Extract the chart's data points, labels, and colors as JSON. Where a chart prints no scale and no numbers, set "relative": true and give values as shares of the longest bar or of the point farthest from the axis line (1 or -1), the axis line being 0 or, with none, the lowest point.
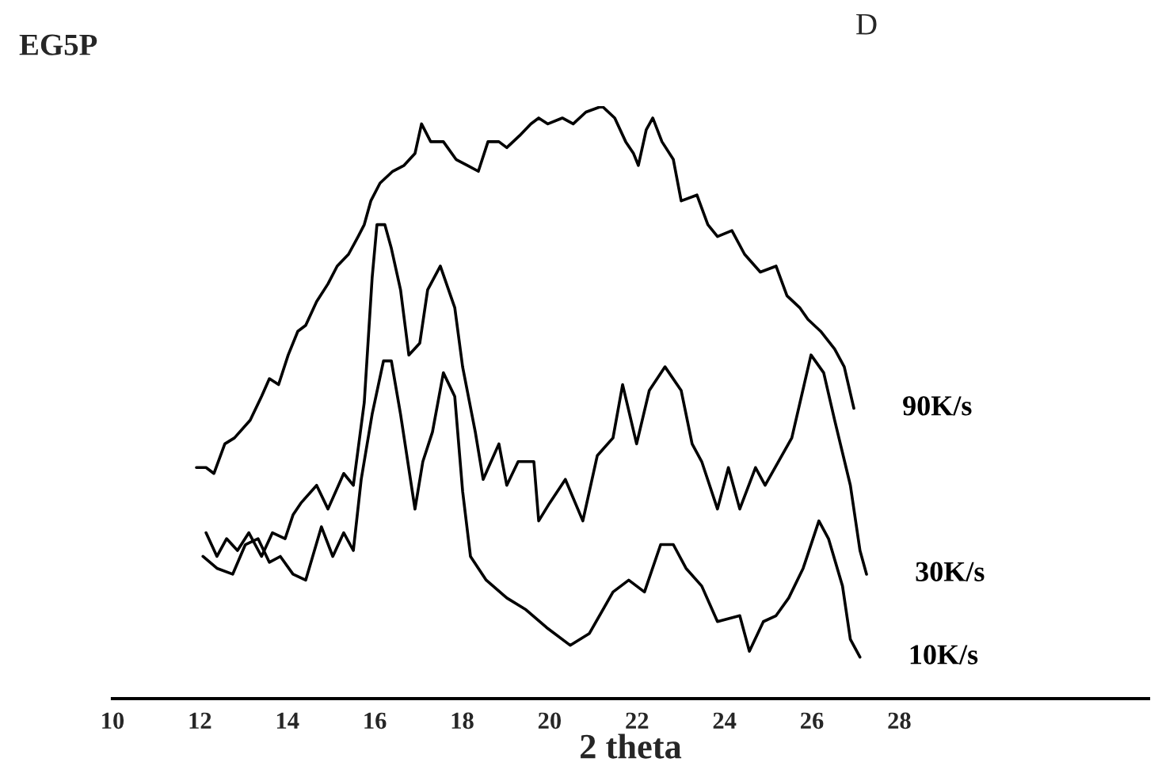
{
  "chart_data": {
    "type": "line",
    "title": "EG5P",
    "xlabel": "2 theta",
    "annotations": [
      "D"
    ],
    "relative": true,
    "legend": false,
    "grid": false,
    "line_style": "solid",
    "marker": "none",
    "xlim": [
      10,
      33.7
    ],
    "xticks": [
      10,
      12,
      14,
      16,
      18,
      20,
      22,
      24,
      26,
      28
    ],
    "series": [
      {
        "name": "90K/s",
        "color": "#000000",
        "x": [
          11.92,
          12.14,
          12.32,
          12.57,
          12.79,
          13.15,
          13.41,
          13.59,
          13.8,
          14.02,
          14.24,
          14.42,
          14.67,
          14.93,
          15.14,
          15.4,
          15.62,
          15.76,
          15.91,
          16.12,
          16.41,
          16.67,
          16.92,
          17.07,
          17.28,
          17.57,
          17.86,
          18.12,
          18.37,
          18.59,
          18.84,
          19.02,
          19.31,
          19.57,
          19.75,
          19.96,
          20.29,
          20.54,
          20.83,
          21.2,
          21.49,
          21.74,
          21.92,
          22.03,
          22.21,
          22.36,
          22.57,
          22.83,
          23.01,
          23.37,
          23.62,
          23.84,
          24.17,
          24.46,
          24.82,
          25.18,
          25.43,
          25.72,
          25.91,
          26.2,
          26.52,
          26.74,
          26.96
        ],
        "values": [
          0.39,
          0.39,
          0.38,
          0.43,
          0.44,
          0.47,
          0.51,
          0.54,
          0.53,
          0.58,
          0.62,
          0.63,
          0.67,
          0.7,
          0.73,
          0.75,
          0.78,
          0.8,
          0.84,
          0.87,
          0.89,
          0.9,
          0.92,
          0.97,
          0.94,
          0.94,
          0.91,
          0.9,
          0.89,
          0.94,
          0.94,
          0.93,
          0.95,
          0.97,
          0.98,
          0.97,
          0.98,
          0.97,
          0.99,
          1.0,
          0.98,
          0.94,
          0.92,
          0.9,
          0.96,
          0.98,
          0.94,
          0.91,
          0.84,
          0.85,
          0.8,
          0.78,
          0.79,
          0.75,
          0.72,
          0.73,
          0.68,
          0.66,
          0.64,
          0.62,
          0.59,
          0.56,
          0.49
        ]
      },
      {
        "name": "30K/s",
        "color": "#000000",
        "x": [
          12.14,
          12.39,
          12.61,
          12.86,
          13.12,
          13.41,
          13.66,
          13.95,
          14.13,
          14.31,
          14.67,
          14.93,
          15.29,
          15.51,
          15.76,
          15.94,
          16.05,
          16.23,
          16.38,
          16.59,
          16.78,
          17.03,
          17.21,
          17.5,
          17.83,
          18.01,
          18.3,
          18.48,
          18.66,
          18.84,
          19.02,
          19.28,
          19.64,
          19.75,
          20.0,
          20.36,
          20.76,
          21.09,
          21.45,
          21.67,
          21.99,
          22.28,
          22.64,
          23.01,
          23.26,
          23.48,
          23.84,
          24.09,
          24.35,
          24.71,
          24.93,
          25.54,
          25.98,
          26.27,
          26.52,
          26.88,
          27.1,
          27.25
        ],
        "values": [
          0.28,
          0.24,
          0.27,
          0.25,
          0.28,
          0.24,
          0.28,
          0.27,
          0.31,
          0.33,
          0.36,
          0.32,
          0.38,
          0.36,
          0.5,
          0.71,
          0.8,
          0.8,
          0.76,
          0.69,
          0.58,
          0.6,
          0.69,
          0.73,
          0.66,
          0.56,
          0.45,
          0.37,
          0.4,
          0.43,
          0.36,
          0.4,
          0.4,
          0.3,
          0.33,
          0.37,
          0.3,
          0.41,
          0.44,
          0.53,
          0.43,
          0.52,
          0.56,
          0.52,
          0.43,
          0.4,
          0.32,
          0.39,
          0.32,
          0.39,
          0.36,
          0.44,
          0.58,
          0.55,
          0.47,
          0.36,
          0.25,
          0.21
        ]
      },
      {
        "name": "10K/s",
        "color": "#000000",
        "x": [
          12.07,
          12.39,
          12.75,
          13.04,
          13.33,
          13.59,
          13.84,
          14.13,
          14.42,
          14.78,
          15.04,
          15.29,
          15.51,
          15.69,
          15.94,
          16.2,
          16.38,
          16.59,
          16.92,
          17.1,
          17.32,
          17.57,
          17.83,
          18.01,
          18.19,
          18.55,
          19.02,
          19.46,
          19.93,
          20.47,
          20.91,
          21.45,
          21.81,
          22.17,
          22.54,
          22.83,
          23.12,
          23.48,
          23.84,
          24.35,
          24.57,
          24.89,
          25.18,
          25.47,
          25.8,
          26.16,
          26.38,
          26.7,
          26.88,
          27.1
        ],
        "values": [
          0.24,
          0.22,
          0.21,
          0.26,
          0.27,
          0.23,
          0.24,
          0.21,
          0.2,
          0.29,
          0.24,
          0.28,
          0.25,
          0.37,
          0.48,
          0.57,
          0.57,
          0.48,
          0.32,
          0.4,
          0.45,
          0.55,
          0.51,
          0.35,
          0.24,
          0.2,
          0.17,
          0.15,
          0.12,
          0.09,
          0.11,
          0.18,
          0.2,
          0.18,
          0.26,
          0.26,
          0.22,
          0.19,
          0.13,
          0.14,
          0.08,
          0.13,
          0.14,
          0.17,
          0.22,
          0.3,
          0.27,
          0.19,
          0.1,
          0.07
        ]
      }
    ]
  }
}
